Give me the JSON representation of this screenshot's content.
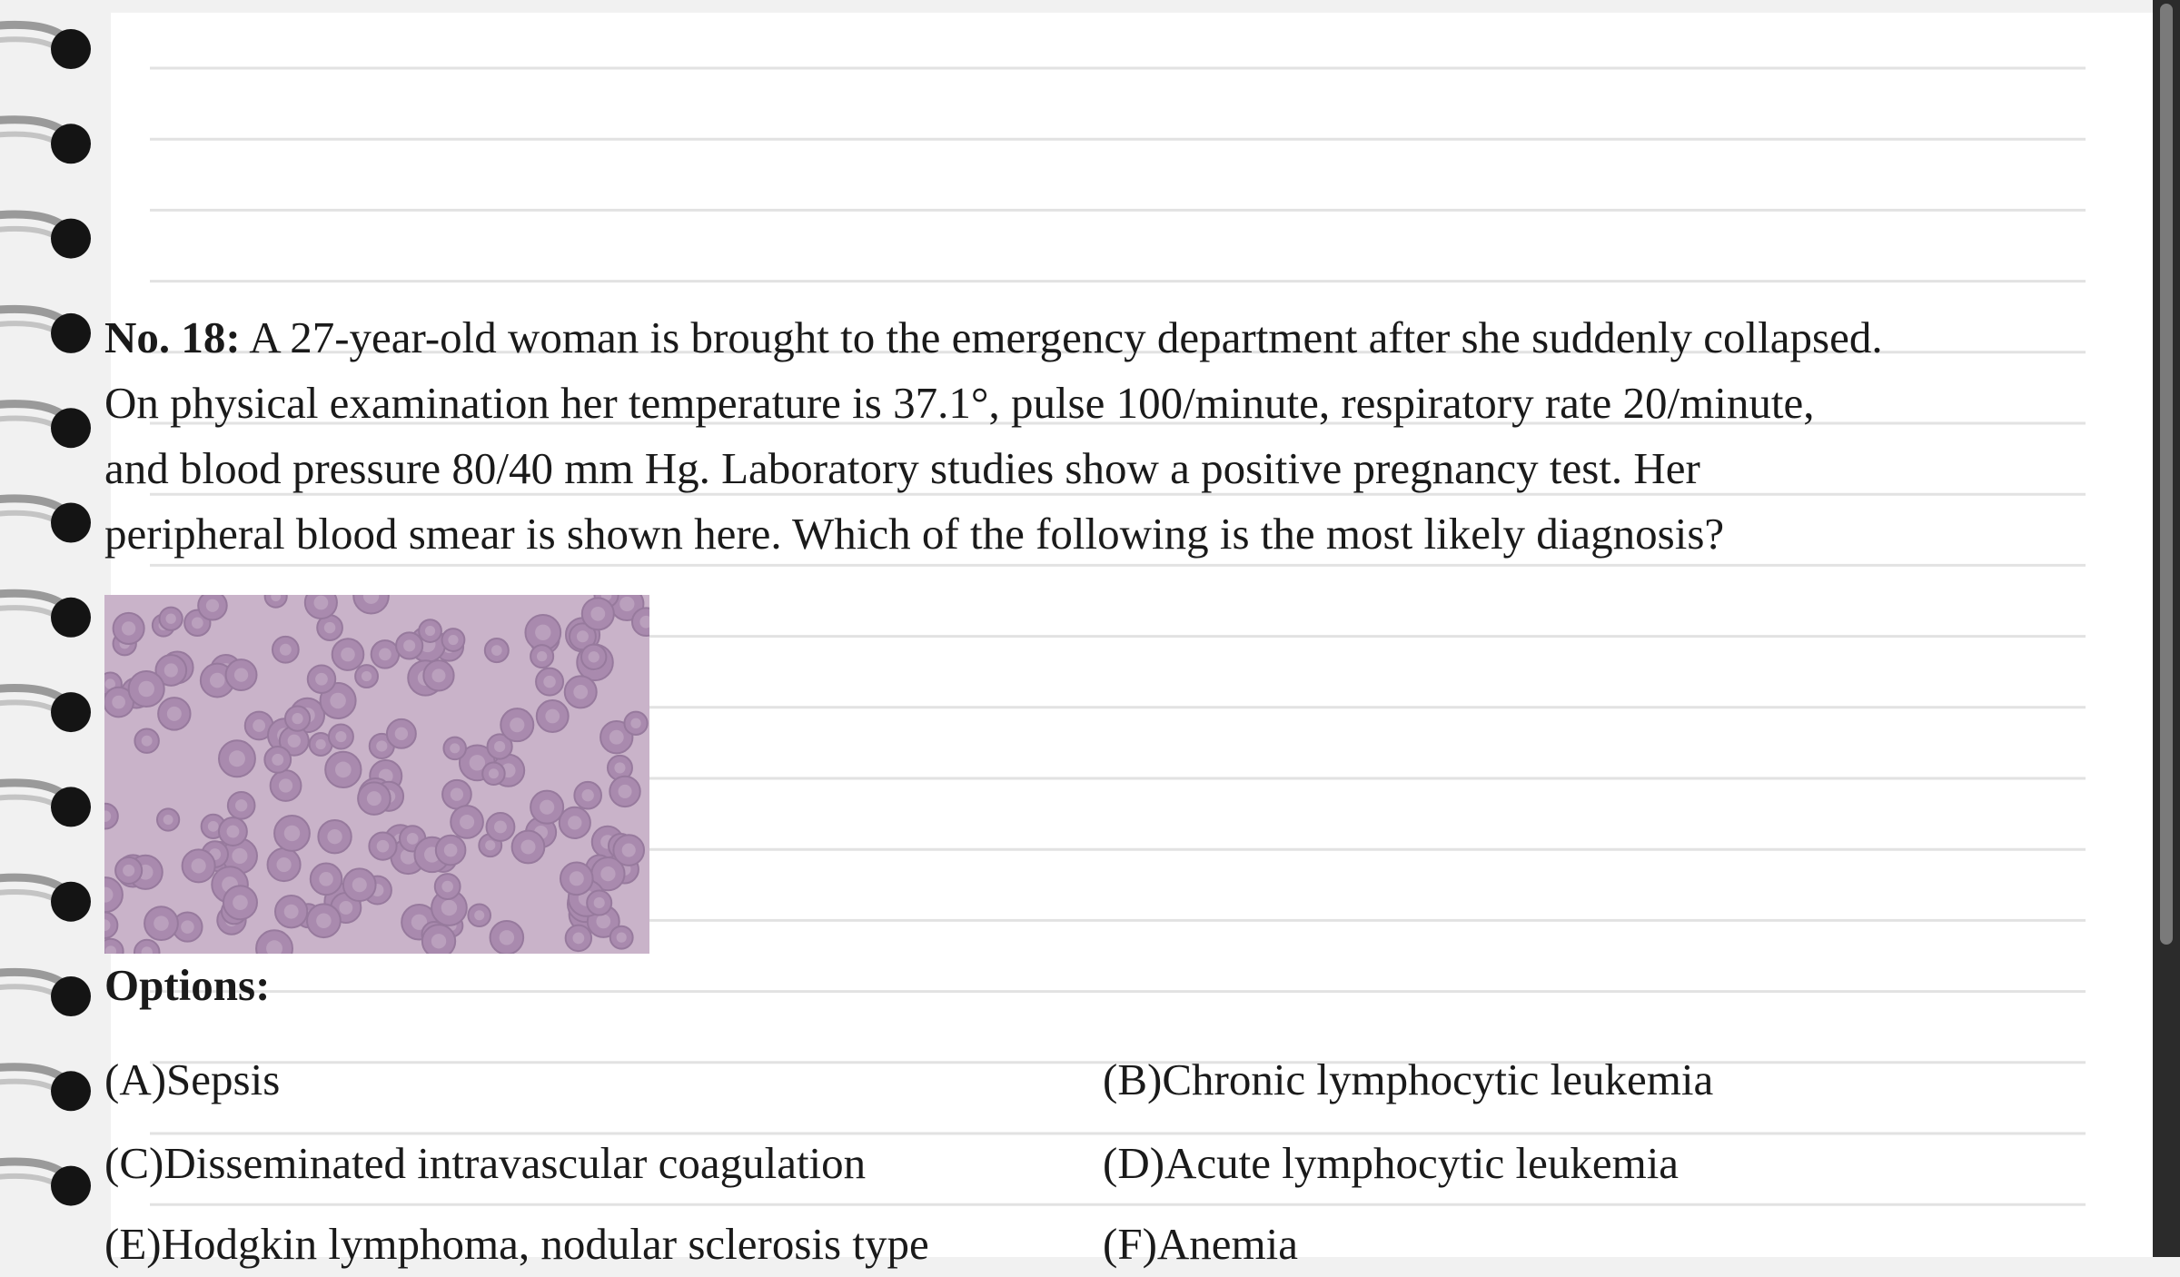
{
  "question": {
    "number": "No. 18:",
    "lines": [
      "A 27-year-old woman is brought to the emergency department after she suddenly collapsed.",
      "On physical examination her temperature is 37.1°, pulse 100/minute, respiratory rate 20/minute,",
      "and blood pressure 80/40 mm Hg. Laboratory studies show a positive pregnancy test. Her",
      "peripheral blood smear is shown here. Which of the following is the most likely diagnosis?"
    ]
  },
  "options": {
    "heading": "Options:",
    "items": [
      "(A)Sepsis",
      "(B)Chronic lymphocytic leukemia",
      "(C)Disseminated intravascular coagulation",
      "(D)Acute lymphocytic leukemia",
      "(E)Hodgkin lymphoma, nodular sclerosis type",
      "(F)Anemia"
    ]
  }
}
